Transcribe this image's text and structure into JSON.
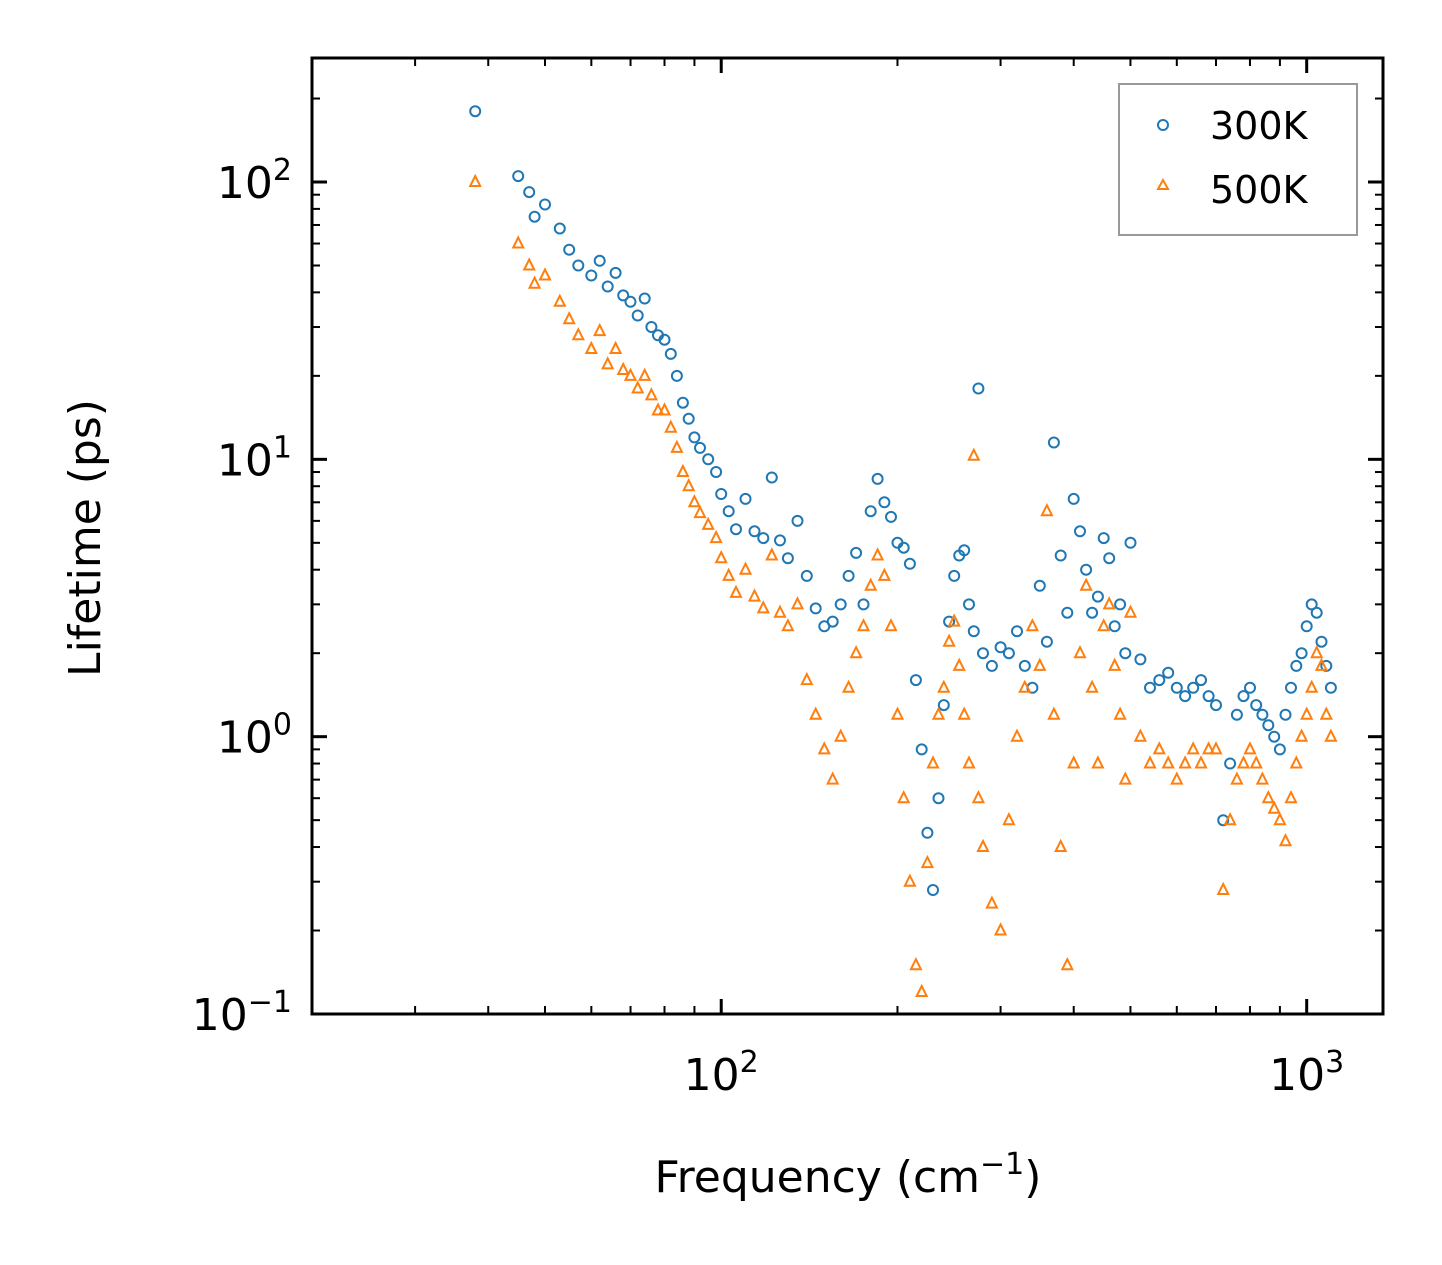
{
  "chart_data": {
    "type": "scatter",
    "title": "",
    "xlabel": "Frequency (cm",
    "xlabel_sup": "−1",
    "xlabel_suffix": ")",
    "ylabel": "Lifetime (ps)",
    "xscale": "log",
    "yscale": "log",
    "xlim": [
      20,
      1350
    ],
    "ylim": [
      0.1,
      280
    ],
    "x_ticks": [
      {
        "value": 100,
        "base": "10",
        "exp": "2"
      },
      {
        "value": 1000,
        "base": "10",
        "exp": "3"
      }
    ],
    "y_ticks": [
      {
        "value": 0.1,
        "base": "10",
        "exp": "−1"
      },
      {
        "value": 1,
        "base": "10",
        "exp": "0"
      },
      {
        "value": 10,
        "base": "10",
        "exp": "1"
      },
      {
        "value": 100,
        "base": "10",
        "exp": "2"
      }
    ],
    "legend_position": "top-right",
    "series": [
      {
        "name": "300K",
        "marker": "circle",
        "color": "#1f77b4",
        "x": [
          38,
          45,
          47,
          48,
          50,
          53,
          55,
          57,
          60,
          62,
          64,
          66,
          68,
          70,
          72,
          74,
          76,
          78,
          80,
          82,
          84,
          86,
          88,
          90,
          92,
          95,
          98,
          100,
          103,
          106,
          110,
          114,
          118,
          122,
          126,
          130,
          135,
          140,
          145,
          150,
          155,
          160,
          165,
          170,
          175,
          180,
          185,
          190,
          195,
          200,
          205,
          210,
          215,
          220,
          225,
          230,
          235,
          240,
          245,
          250,
          255,
          260,
          265,
          270,
          275,
          280,
          290,
          300,
          310,
          320,
          330,
          340,
          350,
          360,
          370,
          380,
          390,
          400,
          410,
          420,
          430,
          440,
          450,
          460,
          470,
          480,
          490,
          500,
          520,
          540,
          560,
          580,
          600,
          620,
          640,
          660,
          680,
          700,
          720,
          740,
          760,
          780,
          800,
          820,
          840,
          860,
          880,
          900,
          920,
          940,
          960,
          980,
          1000,
          1020,
          1040,
          1060,
          1080,
          1100
        ],
        "y": [
          180,
          105,
          92,
          75,
          83,
          68,
          57,
          50,
          46,
          52,
          42,
          47,
          39,
          37,
          33,
          38,
          30,
          28,
          27,
          24,
          20,
          16,
          14,
          12,
          11,
          10,
          9,
          7.5,
          6.5,
          5.6,
          7.2,
          5.5,
          5.2,
          8.6,
          5.1,
          4.4,
          6.0,
          3.8,
          2.9,
          2.5,
          2.6,
          3.0,
          3.8,
          4.6,
          3.0,
          6.5,
          8.5,
          7.0,
          6.2,
          5.0,
          4.8,
          4.2,
          1.6,
          0.9,
          0.45,
          0.28,
          0.6,
          1.3,
          2.6,
          3.8,
          4.5,
          4.7,
          3.0,
          2.4,
          18.0,
          2.0,
          1.8,
          2.1,
          2.0,
          2.4,
          1.8,
          1.5,
          3.5,
          2.2,
          11.5,
          4.5,
          2.8,
          7.2,
          5.5,
          4.0,
          2.8,
          3.2,
          5.2,
          4.4,
          2.5,
          3.0,
          2.0,
          5.0,
          1.9,
          1.5,
          1.6,
          1.7,
          1.5,
          1.4,
          1.5,
          1.6,
          1.4,
          1.3,
          0.5,
          0.8,
          1.2,
          1.4,
          1.5,
          1.3,
          1.2,
          1.1,
          1.0,
          0.9,
          1.2,
          1.5,
          1.8,
          2.0,
          2.5,
          3.0,
          2.8,
          2.2,
          1.8,
          1.5
        ]
      },
      {
        "name": "500K",
        "marker": "triangle",
        "color": "#ff7f0e",
        "x": [
          38,
          45,
          47,
          48,
          50,
          53,
          55,
          57,
          60,
          62,
          64,
          66,
          68,
          70,
          72,
          74,
          76,
          78,
          80,
          82,
          84,
          86,
          88,
          90,
          92,
          95,
          98,
          100,
          103,
          106,
          110,
          114,
          118,
          122,
          126,
          130,
          135,
          140,
          145,
          150,
          155,
          160,
          165,
          170,
          175,
          180,
          185,
          190,
          195,
          200,
          205,
          210,
          215,
          220,
          225,
          230,
          235,
          240,
          245,
          250,
          255,
          260,
          265,
          270,
          275,
          280,
          290,
          300,
          310,
          320,
          330,
          340,
          350,
          360,
          370,
          380,
          390,
          400,
          410,
          420,
          430,
          440,
          450,
          460,
          470,
          480,
          490,
          500,
          520,
          540,
          560,
          580,
          600,
          620,
          640,
          660,
          680,
          700,
          720,
          740,
          760,
          780,
          800,
          820,
          840,
          860,
          880,
          900,
          920,
          940,
          960,
          980,
          1000,
          1020,
          1040,
          1060,
          1080,
          1100
        ],
        "y": [
          100,
          60,
          50,
          43,
          46,
          37,
          32,
          28,
          25,
          29,
          22,
          25,
          21,
          20,
          18,
          20,
          17,
          15,
          15,
          13,
          11,
          9.0,
          8.0,
          7.0,
          6.4,
          5.8,
          5.2,
          4.4,
          3.8,
          3.3,
          4.0,
          3.2,
          2.9,
          4.5,
          2.8,
          2.5,
          3.0,
          1.6,
          1.2,
          0.9,
          0.7,
          1.0,
          1.5,
          2.0,
          2.5,
          3.5,
          4.5,
          3.8,
          2.5,
          1.2,
          0.6,
          0.3,
          0.15,
          0.12,
          0.35,
          0.8,
          1.2,
          1.5,
          2.2,
          2.6,
          1.8,
          1.2,
          0.8,
          10.3,
          0.6,
          0.4,
          0.25,
          0.2,
          0.5,
          1.0,
          1.5,
          2.5,
          1.8,
          6.5,
          1.2,
          0.4,
          0.15,
          0.8,
          2.0,
          3.5,
          1.5,
          0.8,
          2.5,
          3.0,
          1.8,
          1.2,
          0.7,
          2.8,
          1.0,
          0.8,
          0.9,
          0.8,
          0.7,
          0.8,
          0.9,
          0.8,
          0.9,
          0.9,
          0.28,
          0.5,
          0.7,
          0.8,
          0.9,
          0.8,
          0.7,
          0.6,
          0.55,
          0.5,
          0.42,
          0.6,
          0.8,
          1.0,
          1.2,
          1.5,
          2.0,
          1.8,
          1.2,
          1.0
        ]
      }
    ]
  }
}
